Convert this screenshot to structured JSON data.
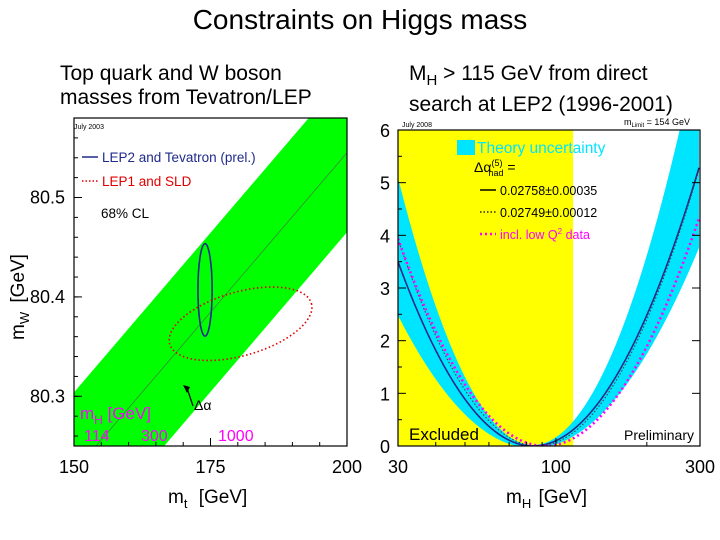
{
  "slide": {
    "title": "Constraints on Higgs mass",
    "left_caption_line1": "Top quark and W boson",
    "left_caption_line2": "masses from Tevatron/LEP",
    "right_caption_main": "M",
    "right_caption_sub": "H",
    "right_caption_rest": " > 115 GeV from direct",
    "right_caption_line2": "search at LEP2 (1996-2001)"
  },
  "colors": {
    "band_green": "#00ff00",
    "yellow": "#ffff00",
    "cyan": "#00e5ff",
    "navy": "#1f2a8c",
    "red_dotted": "#e00000",
    "magenta": "#ff00ff"
  },
  "chart_data": [
    {
      "type": "scatter",
      "subtype": "contour",
      "date_tag": "July 2003",
      "xlabel_main": "m",
      "xlabel_sub": "t",
      "xlabel_unit": "[GeV]",
      "ylabel_main": "m",
      "ylabel_sub": "W",
      "ylabel_unit": "[GeV]",
      "xlim": [
        150,
        200
      ],
      "ylim": [
        80.25,
        80.58
      ],
      "xticks": [
        150,
        175,
        200
      ],
      "yticks": [
        80.3,
        80.4,
        80.5
      ],
      "legend": [
        {
          "label": "LEP2 and Tevatron (prel.)",
          "style": "solid",
          "color": "#1f2a8c"
        },
        {
          "label": "LEP1 and SLD",
          "style": "dotted",
          "color": "#e00000"
        }
      ],
      "cl_label": "68% CL",
      "alpha_label": "Δα",
      "band_label_main": "m",
      "band_label_sub": "H",
      "band_label_unit": "[GeV]",
      "band_mH_values": [
        "114",
        "300",
        "1000"
      ],
      "band": {
        "centerline": [
          [
            150,
            80.224
          ],
          [
            200,
            80.545
          ]
        ],
        "half_width_mW": 0.08
      },
      "ellipses": [
        {
          "name": "LEP2 and Tevatron (prel.)",
          "center": [
            174.0,
            80.407
          ],
          "semi_x": 1.3,
          "semi_y": 0.0465
        },
        {
          "name": "LEP1 and SLD",
          "center": [
            180.5,
            80.373
          ],
          "semi_x": 13.5,
          "semi_y": 0.032,
          "tilt_deg": -16
        }
      ]
    },
    {
      "type": "line",
      "subtype": "delta-chi2 vs mH",
      "date_tag": "July 2008",
      "mlimit_main": "m",
      "mlimit_sub": "Limit",
      "mlimit_rest": " = 154 GeV",
      "xlabel_main": "m",
      "xlabel_sub": "H",
      "xlabel_unit": "[GeV]",
      "xscale": "log",
      "xlim": [
        30,
        300
      ],
      "ylim": [
        0,
        6
      ],
      "xticks": [
        30,
        100,
        300
      ],
      "yticks": [
        0,
        1,
        2,
        3,
        4,
        5,
        6
      ],
      "excluded_label": "Excluded",
      "excluded_range": [
        30,
        114
      ],
      "preliminary_label": "Preliminary",
      "theory_label": "Theory uncertainty",
      "alpha_label": "Δα",
      "alpha_sup": "(5)",
      "alpha_sub": "had",
      "alpha_eq": " =",
      "legend": [
        {
          "label": "0.02758±0.00035",
          "style": "solid",
          "color": "#000000"
        },
        {
          "label": "0.02749±0.00012",
          "style": "dotted",
          "color": "#000000"
        },
        {
          "label_main": "incl. low Q",
          "label_sup": "2",
          "label_rest": " data",
          "style": "dotted",
          "color": "#ff00ff"
        }
      ],
      "series": [
        {
          "name": "0.02758±0.00035",
          "minimum_mH": 84,
          "curvature": 17.5
        },
        {
          "name": "0.02749±0.00012",
          "minimum_mH": 87,
          "curvature": 17.5
        },
        {
          "name": "incl. low Q2 data",
          "minimum_mH": 92,
          "curvature": 17.5
        }
      ],
      "theory_band_half_width": 0.07
    }
  ]
}
